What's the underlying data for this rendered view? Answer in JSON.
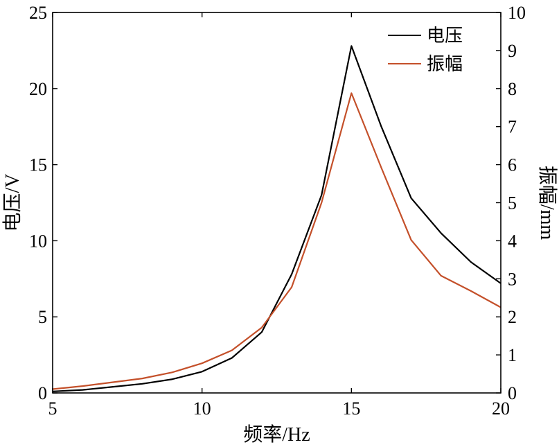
{
  "chart_data": {
    "type": "line",
    "xlabel": "频率/Hz",
    "ylabel_left": "电压/V",
    "ylabel_right": "振幅/mm",
    "xlim": [
      5,
      20
    ],
    "ylim_left": [
      0,
      25
    ],
    "ylim_right": [
      0,
      10
    ],
    "x_ticks": [
      5,
      10,
      15,
      20
    ],
    "y_ticks_left": [
      0,
      5,
      10,
      15,
      20,
      25
    ],
    "y_ticks_right": [
      0,
      1,
      2,
      3,
      4,
      5,
      6,
      7,
      8,
      9,
      10
    ],
    "grid": false,
    "legend_position": "top-right",
    "series": [
      {
        "name": "电压",
        "axis": "left",
        "color": "#000000",
        "x": [
          5,
          6,
          7,
          8,
          9,
          10,
          11,
          12,
          13,
          14,
          15,
          16,
          17,
          18,
          19,
          20
        ],
        "values": [
          0.1,
          0.2,
          0.4,
          0.6,
          0.9,
          1.4,
          2.3,
          4.0,
          7.8,
          13.0,
          22.8,
          17.5,
          12.8,
          10.5,
          8.6,
          7.2
        ]
      },
      {
        "name": "振幅",
        "axis": "right",
        "color": "#c4502a",
        "x": [
          5,
          6,
          7,
          8,
          9,
          10,
          11,
          12,
          13,
          14,
          15,
          16,
          17,
          18,
          19,
          20
        ],
        "values": [
          0.1,
          0.18,
          0.28,
          0.38,
          0.54,
          0.78,
          1.12,
          1.72,
          2.78,
          5.0,
          7.88,
          5.92,
          4.02,
          3.08,
          2.68,
          2.25
        ]
      }
    ]
  }
}
